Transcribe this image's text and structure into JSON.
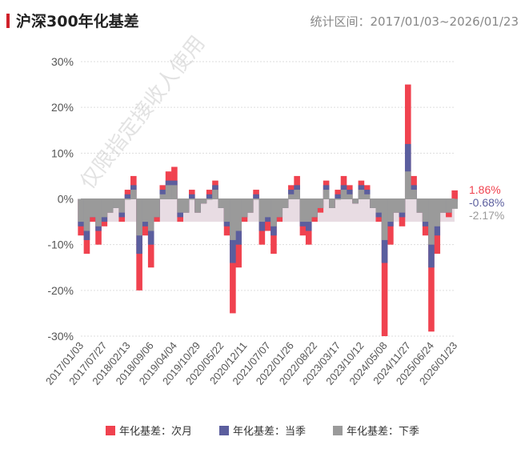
{
  "header": {
    "title": "沪深300年化基差",
    "range_label": "统计区间：2017/01/03~2026/01/23"
  },
  "watermark": "仅限指定接收人使用",
  "chart_data": {
    "type": "bar",
    "title": "沪深300年化基差",
    "ylim": [
      -30,
      30
    ],
    "yticks": [
      "30%",
      "20%",
      "10%",
      "0%",
      "-10%",
      "-20%",
      "-30%"
    ],
    "ytick_values": [
      30,
      20,
      10,
      0,
      -10,
      -20,
      -30
    ],
    "xticks": [
      "2017/01/03",
      "2017/07/27",
      "2018/02/13",
      "2018/09/06",
      "2019/04/04",
      "2019/10/29",
      "2020/05/22",
      "2020/12/11",
      "2021/07/07",
      "2022/01/26",
      "2022/08/22",
      "2023/03/17",
      "2023/10/12",
      "2024/05/08",
      "2024/11/27",
      "2025/06/24",
      "2026/01/23"
    ],
    "grid": true,
    "legend_position": "bottom",
    "series": [
      {
        "name": "年化基差：次月",
        "color": "#f0424f",
        "last_label": "1.86%",
        "values": [
          -8,
          -12,
          -5,
          -10,
          -6,
          -3,
          -2,
          -5,
          2,
          5,
          -20,
          -8,
          -15,
          -5,
          3,
          6,
          7,
          -5,
          -3,
          2,
          -3,
          -1,
          2,
          4,
          -2,
          -8,
          -25,
          -15,
          -5,
          -3,
          2,
          -10,
          -7,
          -12,
          -5,
          -2,
          3,
          5,
          -8,
          -10,
          -5,
          -3,
          4,
          -2,
          2,
          5,
          3,
          -1,
          4,
          3,
          -2,
          -5,
          -30,
          -10,
          -3,
          -6,
          25,
          5,
          -3,
          -8,
          -29,
          -12,
          -3,
          -4,
          1.86
        ]
      },
      {
        "name": "年化基差：当季",
        "color": "#5b5e9e",
        "last_label": "-0.68%",
        "values": [
          -6,
          -9,
          -4,
          -7,
          -5,
          -3,
          -2,
          -4,
          1,
          3,
          -12,
          -6,
          -10,
          -4,
          2,
          4,
          4,
          -4,
          -3,
          1,
          -3,
          -1,
          1,
          3,
          -2,
          -6,
          -14,
          -10,
          -4,
          -3,
          1,
          -7,
          -5,
          -8,
          -4,
          -2,
          2,
          3,
          -6,
          -7,
          -4,
          -2,
          3,
          -2,
          1,
          3,
          2,
          -1,
          3,
          2,
          -2,
          -4,
          -14,
          -6,
          -3,
          -4,
          12,
          3,
          -3,
          -6,
          -15,
          -8,
          -3,
          -3,
          -0.68
        ]
      },
      {
        "name": "年化基差：下季",
        "color": "#9a9a9a",
        "last_label": "-2.17%",
        "values": [
          -5,
          -7,
          -4,
          -6,
          -4,
          -3,
          -2,
          -3,
          0,
          2,
          -8,
          -5,
          -7,
          -4,
          1,
          3,
          3,
          -3,
          -3,
          0,
          -3,
          -1,
          0,
          2,
          -2,
          -5,
          -9,
          -7,
          -4,
          -3,
          0,
          -5,
          -4,
          -6,
          -4,
          -2,
          1,
          2,
          -5,
          -5,
          -4,
          -2,
          2,
          -2,
          0,
          2,
          1,
          -1,
          2,
          1,
          -2,
          -3,
          -9,
          -5,
          -3,
          -3,
          6,
          2,
          -3,
          -5,
          -10,
          -6,
          -3,
          -3,
          -2.17
        ]
      }
    ]
  }
}
